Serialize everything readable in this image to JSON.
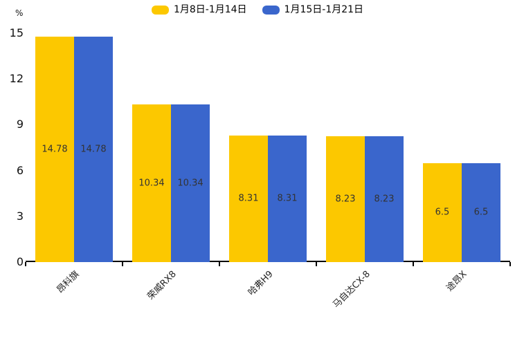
{
  "chart_data": {
    "type": "bar",
    "title": "",
    "ylabel": "%",
    "xlabel": "",
    "categories": [
      "昂科旗",
      "荣威RX8",
      "哈弗H9",
      "马自达CX-8",
      "途昂X"
    ],
    "series": [
      {
        "name": "1月8日-1月14日",
        "color": "#FCC800",
        "values": [
          14.78,
          10.34,
          8.31,
          8.23,
          6.5
        ]
      },
      {
        "name": "1月15日-1月21日",
        "color": "#3A66CC",
        "values": [
          14.78,
          10.34,
          8.31,
          8.23,
          6.5
        ]
      }
    ],
    "ylim": [
      0,
      15
    ],
    "yticks": [
      0,
      3,
      6,
      9,
      12,
      15
    ],
    "grid": false,
    "legend_position": "top",
    "value_label_color": "#333333",
    "axis_color": "#000000"
  }
}
